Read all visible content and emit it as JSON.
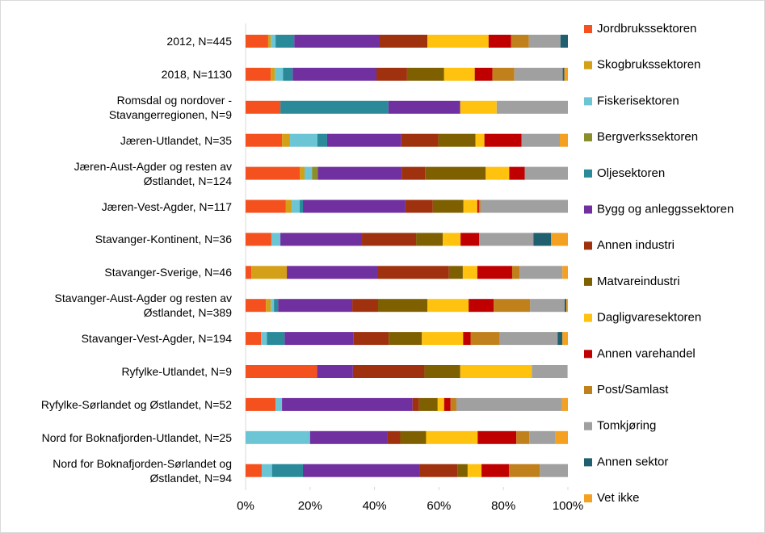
{
  "chart_data": {
    "type": "stacked-bar-horizontal",
    "categories": [
      "2012, N=445",
      "2018, N=1130",
      "Romsdal og nordover -\nStavangerregionen, N=9",
      "Jæren-Utlandet, N=35",
      "Jæren-Aust-Agder og resten av\nØstlandet, N=124",
      "Jæren-Vest-Agder, N=117",
      "Stavanger-Kontinent, N=36",
      "Stavanger-Sverige, N=46",
      "Stavanger-Aust-Agder og resten av\nØstlandet, N=389",
      "Stavanger-Vest-Agder, N=194",
      "Ryfylke-Utlandet, N=9",
      "Ryfylke-Sørlandet og Østlandet, N=52",
      "Nord for Boknafjorden-Utlandet, N=25",
      "Nord for Boknafjorden-Sørlandet og\nØstlandet, N=94"
    ],
    "series": [
      {
        "name": "Jordbrukssektoren",
        "color": "#f4511e",
        "values": [
          7,
          7.8,
          10.8,
          11.3,
          16.8,
          12.5,
          8,
          1.8,
          6.3,
          4.8,
          22.2,
          9.3,
          0,
          5
        ]
      },
      {
        "name": "Skogbrukssektoren",
        "color": "#d4a017",
        "values": [
          0.8,
          1.3,
          0,
          2.5,
          1.5,
          1.8,
          0,
          11,
          1.5,
          0,
          0,
          0,
          0,
          0
        ]
      },
      {
        "name": "Fiskerisektoren",
        "color": "#6cc5d4",
        "values": [
          1.5,
          2.5,
          0,
          8.5,
          2.3,
          2.5,
          2.8,
          0,
          1,
          1.8,
          0,
          2,
          20,
          3.2
        ]
      },
      {
        "name": "Bergverkssektoren",
        "color": "#8b8f2b",
        "values": [
          0,
          0,
          0,
          0,
          1.8,
          0,
          0,
          0,
          0,
          0,
          0,
          0,
          0,
          0
        ]
      },
      {
        "name": "Oljesektoren",
        "color": "#2a8a9a",
        "values": [
          5.8,
          3,
          33.5,
          3,
          0,
          1,
          0,
          0,
          1.3,
          5.5,
          0,
          0,
          0,
          9.6
        ]
      },
      {
        "name": "Bygg og anleggssektoren",
        "color": "#7030a0",
        "values": [
          26.5,
          26,
          22.3,
          23,
          26,
          31.8,
          25.3,
          28.3,
          23,
          21.3,
          11.1,
          40.5,
          24,
          36.2
        ]
      },
      {
        "name": "Annen industri",
        "color": "#a0310f",
        "values": [
          14.8,
          9.5,
          0,
          11.5,
          7.3,
          8.5,
          16.8,
          22,
          8,
          11,
          22.2,
          2,
          4,
          11.7
        ]
      },
      {
        "name": "Matvareindustri",
        "color": "#7f6000",
        "values": [
          0,
          11.5,
          0,
          11.5,
          18.8,
          9.5,
          8.3,
          4.3,
          15.3,
          10.3,
          11.1,
          5.8,
          8,
          3.2
        ]
      },
      {
        "name": "Dagligvaresektoren",
        "color": "#ffc20e",
        "values": [
          19,
          9.5,
          11.3,
          2.8,
          7.3,
          4.3,
          5.5,
          4.5,
          12.8,
          12.8,
          22.2,
          2,
          16,
          4.3
        ]
      },
      {
        "name": "Annen varehandel",
        "color": "#c00000",
        "values": [
          7,
          5.5,
          0,
          11.5,
          4.8,
          0.5,
          5.8,
          10.8,
          7.8,
          2.3,
          0,
          2,
          12,
          8.5
        ]
      },
      {
        "name": "Post/Samlast",
        "color": "#c0801c",
        "values": [
          5.5,
          6.8,
          0,
          0,
          0,
          0.5,
          0,
          2.3,
          11.3,
          9,
          0,
          1.8,
          4,
          9.6
        ]
      },
      {
        "name": "Tomkjøring",
        "color": "#a0a0a0",
        "values": [
          9.8,
          15,
          22.1,
          11.9,
          13.4,
          27.1,
          16.8,
          13.3,
          10.7,
          18,
          11.1,
          32.8,
          8,
          8.7
        ]
      },
      {
        "name": "Annen sektor",
        "color": "#1f5f6f",
        "values": [
          2.3,
          0.5,
          0,
          0,
          0,
          0,
          5.5,
          0,
          0.5,
          1.5,
          0,
          0,
          0,
          0
        ]
      },
      {
        "name": "Vet ikke",
        "color": "#f4a020",
        "values": [
          0,
          1.1,
          0,
          2.5,
          0,
          0,
          5.2,
          1.7,
          0.5,
          1.7,
          0,
          1.8,
          4,
          0
        ]
      }
    ],
    "xlim": [
      0,
      100
    ],
    "xticks": [
      {
        "value": 0,
        "label": "0%"
      },
      {
        "value": 20,
        "label": "20%"
      },
      {
        "value": 40,
        "label": "40%"
      },
      {
        "value": 60,
        "label": "60%"
      },
      {
        "value": 80,
        "label": "80%"
      },
      {
        "value": 100,
        "label": "100%"
      }
    ],
    "legend": "right"
  }
}
